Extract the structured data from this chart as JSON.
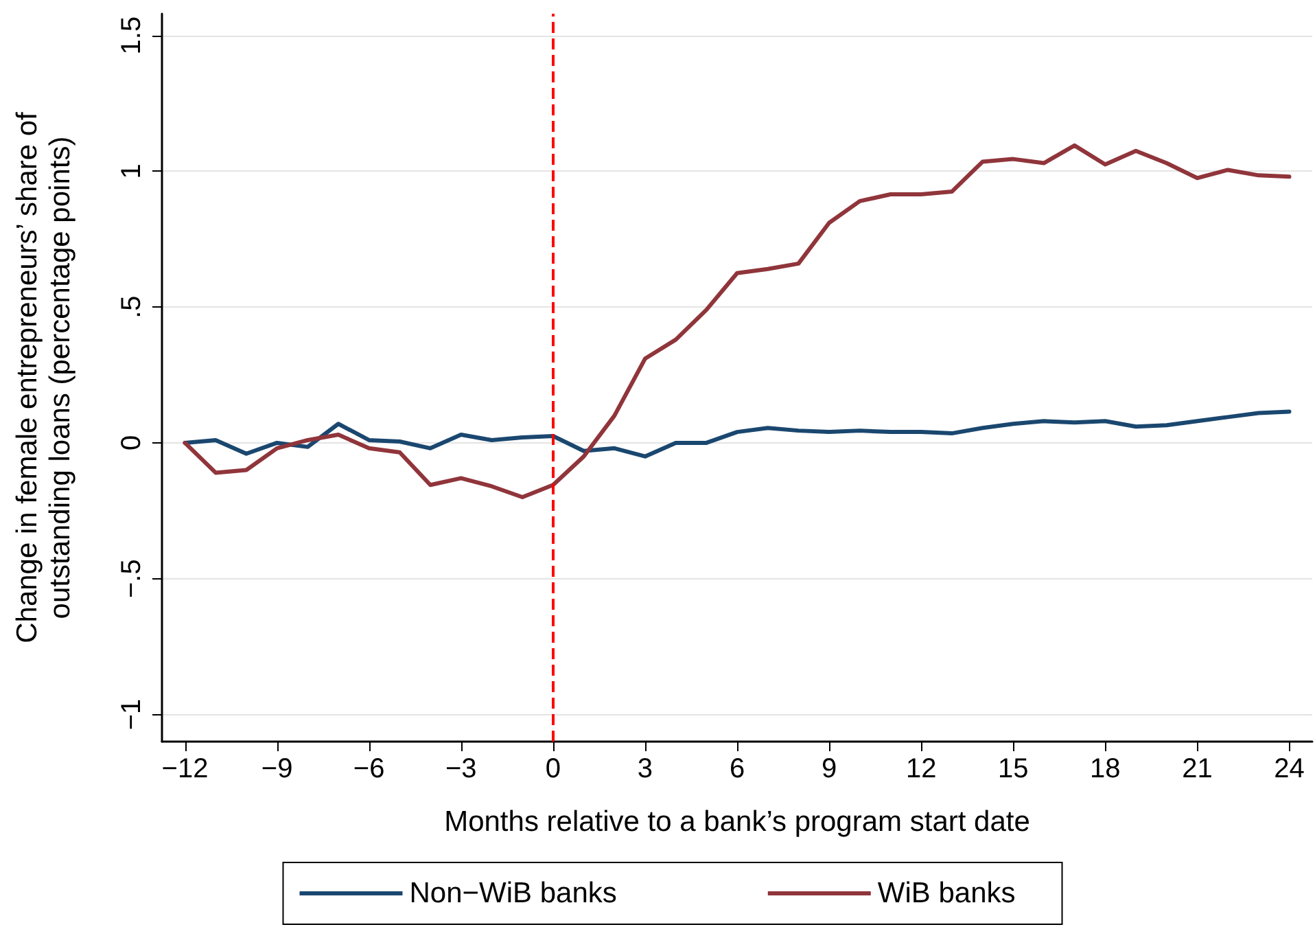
{
  "chart_data": {
    "type": "line",
    "xlabel": "Months relative to a bank’s program start date",
    "ylabel": "Change in female entrepreneurs’ share of\noutstanding loans (percentage points)",
    "x": [
      -12,
      -11,
      -10,
      -9,
      -8,
      -7,
      -6,
      -5,
      -4,
      -3,
      -2,
      -1,
      0,
      1,
      2,
      3,
      4,
      5,
      6,
      7,
      8,
      9,
      10,
      11,
      12,
      13,
      14,
      15,
      16,
      17,
      18,
      19,
      20,
      21,
      22,
      23,
      24
    ],
    "series": [
      {
        "name": "Non−WiB banks",
        "color": "#1a476f",
        "values": [
          0,
          0.01,
          -0.04,
          0,
          -0.015,
          0.07,
          0.01,
          0.005,
          -0.02,
          0.03,
          0.01,
          0.02,
          0.025,
          -0.03,
          -0.02,
          -0.05,
          0,
          0,
          0.04,
          0.055,
          0.045,
          0.04,
          0.045,
          0.04,
          0.04,
          0.035,
          0.055,
          0.07,
          0.08,
          0.075,
          0.08,
          0.06,
          0.065,
          0.08,
          0.095,
          0.11,
          0.115
        ]
      },
      {
        "name": "WiB banks",
        "color": "#90353b",
        "values": [
          0,
          -0.11,
          -0.1,
          -0.02,
          0.01,
          0.03,
          -0.02,
          -0.035,
          -0.155,
          -0.13,
          -0.16,
          -0.2,
          -0.155,
          -0.05,
          0.1,
          0.31,
          0.38,
          0.49,
          0.625,
          0.64,
          0.66,
          0.81,
          0.89,
          0.915,
          0.915,
          0.925,
          1.035,
          1.045,
          1.03,
          1.095,
          1.025,
          1.075,
          1.03,
          0.975,
          1.005,
          0.985,
          0.98
        ]
      }
    ],
    "xlim": [
      -12.75,
      24.75
    ],
    "xticks": [
      {
        "value": -12,
        "label": "−12"
      },
      {
        "value": -9,
        "label": "−9"
      },
      {
        "value": -6,
        "label": "−6"
      },
      {
        "value": -3,
        "label": "−3"
      },
      0,
      3,
      6,
      9,
      12,
      15,
      18,
      21,
      24
    ],
    "ylim": [
      -1.1,
      1.58
    ],
    "yticks": [
      {
        "value": -1,
        "label": "−1"
      },
      {
        "value": -0.5,
        "label": "−.5"
      },
      0,
      {
        "value": 0.5,
        "label": ".5"
      },
      1,
      {
        "value": 1.5,
        "label": "1.5"
      }
    ],
    "grid": "y",
    "legend": "bottom",
    "marker": "none",
    "line_style": "solid",
    "ref_lines": [
      {
        "axis": "x",
        "value": 0,
        "color": "#ff0000",
        "line_style": "dashed"
      }
    ]
  }
}
